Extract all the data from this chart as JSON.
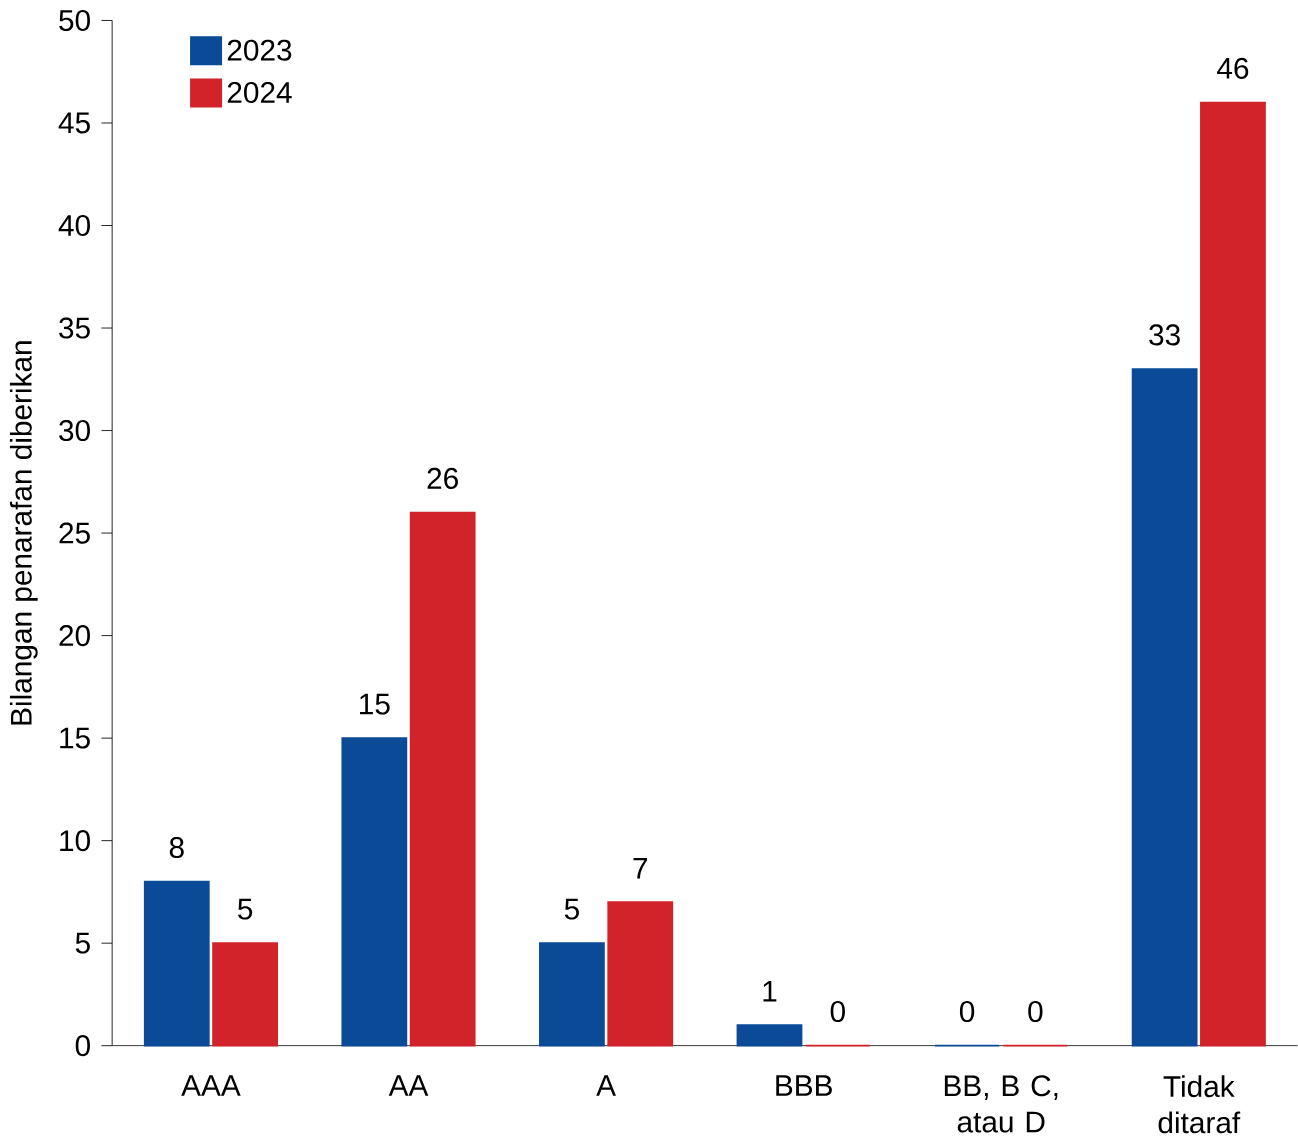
{
  "chart_data": {
    "type": "bar",
    "ylabel": "Bilangan penarafan diberikan",
    "categories": [
      "AAA",
      "AA",
      "A",
      "BBB",
      "BB, B C, atau D",
      "Tidak ditaraf"
    ],
    "series": [
      {
        "name": "2023",
        "color": "#0a4a97",
        "values": [
          8,
          15,
          5,
          1,
          0,
          33
        ]
      },
      {
        "name": "2024",
        "color": "#d2232a",
        "values": [
          5,
          26,
          7,
          0,
          0,
          46
        ]
      }
    ],
    "ylim": [
      0,
      50
    ],
    "yticks": [
      0,
      5,
      10,
      15,
      20,
      25,
      30,
      35,
      40,
      45,
      50
    ],
    "data_labels": true,
    "grid": false,
    "legend": "top left"
  }
}
